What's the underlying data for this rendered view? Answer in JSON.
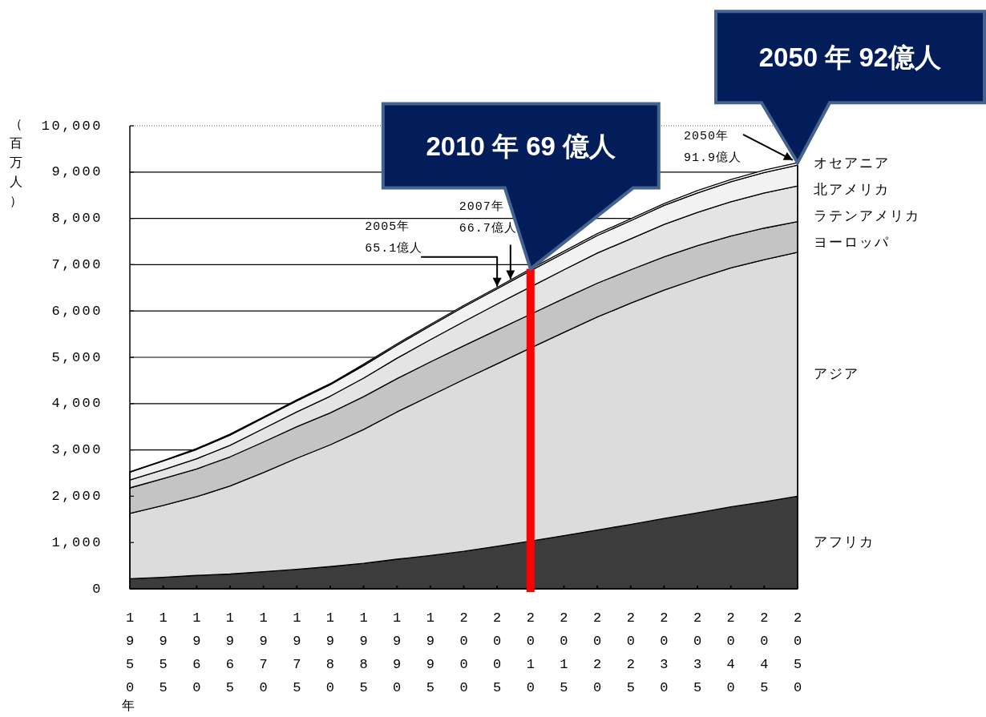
{
  "chart_data": {
    "type": "area",
    "stacked": true,
    "x": [
      1950,
      1955,
      1960,
      1965,
      1970,
      1975,
      1980,
      1985,
      1990,
      1995,
      2000,
      2005,
      2010,
      2015,
      2020,
      2025,
      2030,
      2035,
      2040,
      2045,
      2050
    ],
    "series": [
      {
        "name": "アフリカ",
        "color": "#3c3c3c",
        "values": [
          220,
          250,
          290,
          320,
          370,
          420,
          480,
          550,
          640,
          720,
          810,
          920,
          1030,
          1150,
          1270,
          1390,
          1520,
          1640,
          1770,
          1880,
          2000
        ]
      },
      {
        "name": "アジア",
        "color": "#dcdcdc",
        "values": [
          1410,
          1550,
          1700,
          1900,
          2140,
          2400,
          2630,
          2890,
          3180,
          3450,
          3710,
          3940,
          4170,
          4390,
          4600,
          4780,
          4930,
          5060,
          5160,
          5230,
          5270
        ]
      },
      {
        "name": "ヨーロッパ",
        "color": "#c4c4c4",
        "values": [
          550,
          580,
          600,
          630,
          660,
          680,
          690,
          710,
          720,
          730,
          730,
          730,
          730,
          730,
          730,
          720,
          720,
          710,
          690,
          680,
          660
        ]
      },
      {
        "name": "ラテンアメリカ",
        "color": "#e4e4e4",
        "values": [
          170,
          190,
          220,
          250,
          290,
          320,
          360,
          400,
          440,
          480,
          520,
          560,
          590,
          620,
          650,
          670,
          700,
          720,
          740,
          760,
          770
        ]
      },
      {
        "name": "北アメリカ",
        "color": "#f2f2f2",
        "values": [
          170,
          190,
          200,
          220,
          230,
          240,
          250,
          270,
          280,
          300,
          320,
          330,
          350,
          360,
          380,
          390,
          410,
          420,
          430,
          440,
          450
        ]
      },
      {
        "name": "オセアニア",
        "color": "#ffffff",
        "values": [
          10,
          10,
          20,
          20,
          20,
          20,
          20,
          30,
          30,
          30,
          30,
          30,
          40,
          40,
          40,
          40,
          40,
          50,
          50,
          50,
          50
        ]
      }
    ],
    "xlim": [
      1950,
      2050
    ],
    "ylim": [
      0,
      10000
    ],
    "xticks": [
      1950,
      1955,
      1960,
      1965,
      1970,
      1975,
      1980,
      1985,
      1990,
      1995,
      2000,
      2005,
      2010,
      2015,
      2020,
      2025,
      2030,
      2035,
      2040,
      2045,
      2050
    ],
    "yticks": [
      0,
      {
        "value": 1000,
        "label": "1,000"
      },
      {
        "value": 2000,
        "label": "2,000"
      },
      {
        "value": 3000,
        "label": "3,000"
      },
      {
        "value": 4000,
        "label": "4,000"
      },
      {
        "value": 5000,
        "label": "5,000"
      },
      {
        "value": 6000,
        "label": "6,000"
      },
      {
        "value": 7000,
        "label": "7,000"
      },
      {
        "value": 8000,
        "label": "8,000"
      },
      {
        "value": 9000,
        "label": "9,000"
      },
      {
        "value": 10000,
        "label": "10,000"
      }
    ],
    "xlabel": "年",
    "ylabel": "（百万人）",
    "grid": "y",
    "legend": false,
    "ref_lines": [
      {
        "axis": "x",
        "value": 2010,
        "color": "#ff0000"
      }
    ],
    "annotations": [
      {
        "text": "2005年\n65.1億人",
        "x": 2005,
        "y": 6510
      },
      {
        "text": "2007年\n66.7億人",
        "x": 2007,
        "y": 6670
      },
      {
        "text": "2050年\n91.9億人",
        "x": 2050,
        "y": 9190
      },
      "2010 年  69 億人",
      "2050 年  92億人"
    ]
  }
}
